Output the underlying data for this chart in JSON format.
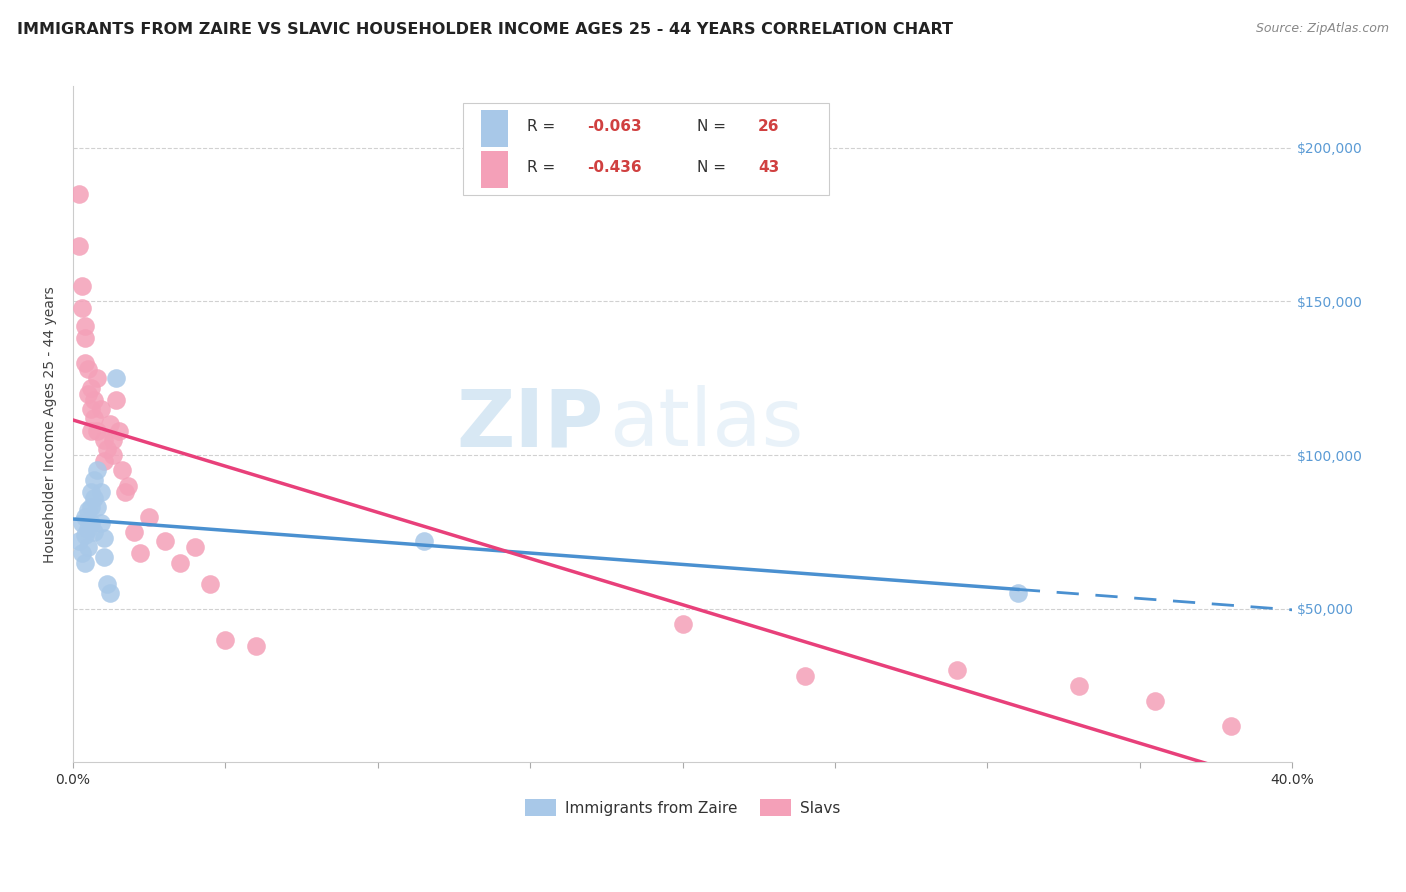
{
  "title": "IMMIGRANTS FROM ZAIRE VS SLAVIC HOUSEHOLDER INCOME AGES 25 - 44 YEARS CORRELATION CHART",
  "source": "Source: ZipAtlas.com",
  "ylabel": "Householder Income Ages 25 - 44 years",
  "xlim": [
    0.0,
    0.4
  ],
  "ylim": [
    0,
    220000
  ],
  "xticks": [
    0.0,
    0.05,
    0.1,
    0.15,
    0.2,
    0.25,
    0.3,
    0.35,
    0.4
  ],
  "xtick_labels": [
    "0.0%",
    "",
    "",
    "",
    "",
    "",
    "",
    "",
    "40.0%"
  ],
  "zaire_color": "#a8c8e8",
  "slavs_color": "#f4a0b8",
  "zaire_line_color": "#4a90d0",
  "slavs_line_color": "#e8407a",
  "background_color": "#ffffff",
  "grid_color": "#cccccc",
  "right_tick_color": "#5b9bd5",
  "zaire_x": [
    0.002,
    0.003,
    0.003,
    0.004,
    0.004,
    0.004,
    0.005,
    0.005,
    0.005,
    0.006,
    0.006,
    0.006,
    0.007,
    0.007,
    0.007,
    0.008,
    0.008,
    0.009,
    0.009,
    0.01,
    0.01,
    0.011,
    0.012,
    0.014,
    0.115,
    0.31
  ],
  "zaire_y": [
    72000,
    78000,
    68000,
    80000,
    74000,
    65000,
    82000,
    76000,
    70000,
    88000,
    83000,
    78000,
    92000,
    86000,
    75000,
    95000,
    83000,
    88000,
    78000,
    73000,
    67000,
    58000,
    55000,
    125000,
    72000,
    55000
  ],
  "slavs_x": [
    0.002,
    0.002,
    0.003,
    0.003,
    0.004,
    0.004,
    0.004,
    0.005,
    0.005,
    0.006,
    0.006,
    0.006,
    0.007,
    0.007,
    0.008,
    0.008,
    0.009,
    0.01,
    0.01,
    0.011,
    0.012,
    0.013,
    0.013,
    0.014,
    0.015,
    0.016,
    0.017,
    0.018,
    0.02,
    0.022,
    0.025,
    0.03,
    0.035,
    0.04,
    0.045,
    0.05,
    0.06,
    0.2,
    0.24,
    0.29,
    0.33,
    0.355,
    0.38
  ],
  "slavs_y": [
    185000,
    168000,
    155000,
    148000,
    138000,
    142000,
    130000,
    128000,
    120000,
    115000,
    122000,
    108000,
    118000,
    112000,
    125000,
    108000,
    115000,
    105000,
    98000,
    102000,
    110000,
    100000,
    105000,
    118000,
    108000,
    95000,
    88000,
    90000,
    75000,
    68000,
    80000,
    72000,
    65000,
    70000,
    58000,
    40000,
    38000,
    45000,
    28000,
    30000,
    25000,
    20000,
    12000
  ],
  "legend_r1_label": "R = ",
  "legend_r1_val": "-0.063",
  "legend_r1_n_label": "N = ",
  "legend_r1_n_val": "26",
  "legend_r2_label": "R = ",
  "legend_r2_val": "-0.436",
  "legend_r2_n_label": "N = ",
  "legend_r2_n_val": "43",
  "legend_text_color": "#333333",
  "legend_val_color": "#d04040",
  "watermark_zip": "ZIP",
  "watermark_atlas": "atlas",
  "title_fontsize": 11.5,
  "axis_label_fontsize": 10,
  "tick_fontsize": 10
}
